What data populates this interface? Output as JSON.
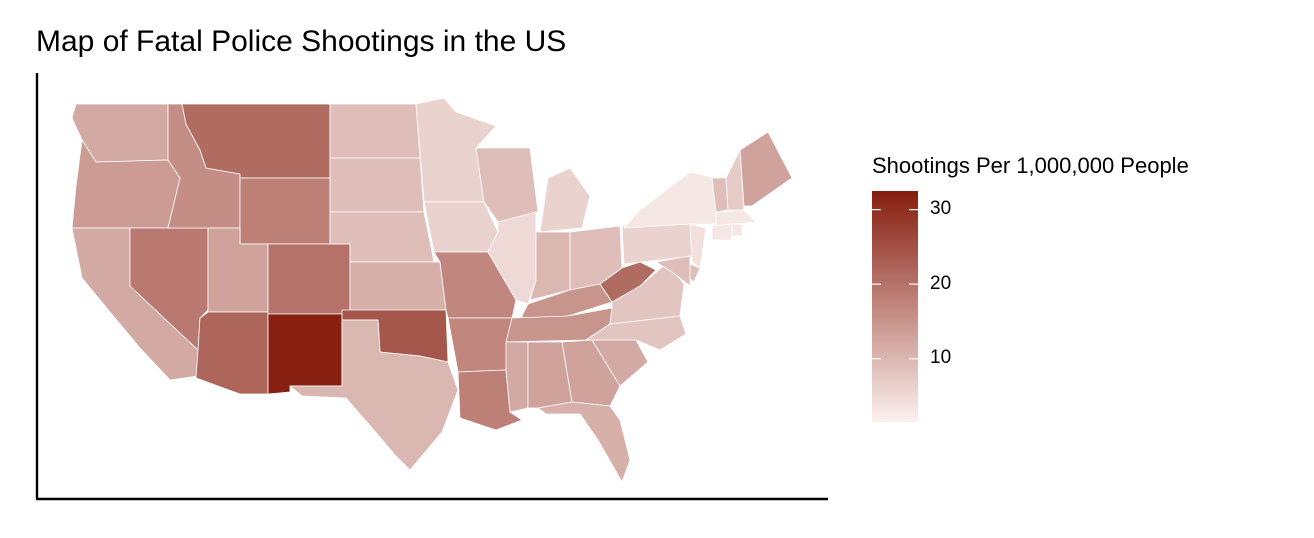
{
  "title": "Map of Fatal Police Shootings in the US",
  "legend": {
    "title": "Shootings Per 1,000,000 People",
    "ticks": [
      "30",
      "20",
      "10"
    ],
    "tick_values": [
      30,
      20,
      10
    ],
    "range": [
      1.5,
      32.5
    ],
    "color_low": "#fbf1ef",
    "color_high": "#861d0e"
  },
  "chart_data": {
    "type": "heatmap",
    "title": "Map of Fatal Police Shootings in the US",
    "legend_title": "Shootings Per 1,000,000 People",
    "legend_placement": "right",
    "scale_range": [
      1.5,
      32.5
    ],
    "scale_ticks": [
      10,
      20,
      30
    ],
    "regions": [
      {
        "name": "Washington",
        "value": 12
      },
      {
        "name": "Oregon",
        "value": 14
      },
      {
        "name": "California",
        "value": 12
      },
      {
        "name": "Nevada",
        "value": 19
      },
      {
        "name": "Idaho",
        "value": 16
      },
      {
        "name": "Montana",
        "value": 21
      },
      {
        "name": "Wyoming",
        "value": 18
      },
      {
        "name": "Utah",
        "value": 13
      },
      {
        "name": "Arizona",
        "value": 22
      },
      {
        "name": "Colorado",
        "value": 20
      },
      {
        "name": "New Mexico",
        "value": 32
      },
      {
        "name": "North Dakota",
        "value": 9
      },
      {
        "name": "South Dakota",
        "value": 9
      },
      {
        "name": "Nebraska",
        "value": 9
      },
      {
        "name": "Kansas",
        "value": 11
      },
      {
        "name": "Oklahoma",
        "value": 24
      },
      {
        "name": "Texas",
        "value": 10
      },
      {
        "name": "Minnesota",
        "value": 6
      },
      {
        "name": "Iowa",
        "value": 6
      },
      {
        "name": "Missouri",
        "value": 17
      },
      {
        "name": "Arkansas",
        "value": 17
      },
      {
        "name": "Louisiana",
        "value": 18
      },
      {
        "name": "Wisconsin",
        "value": 9
      },
      {
        "name": "Illinois",
        "value": 5
      },
      {
        "name": "Michigan",
        "value": 6
      },
      {
        "name": "Indiana",
        "value": 10
      },
      {
        "name": "Ohio",
        "value": 9
      },
      {
        "name": "Kentucky",
        "value": 15
      },
      {
        "name": "Tennessee",
        "value": 15
      },
      {
        "name": "Mississippi",
        "value": 12
      },
      {
        "name": "Alabama",
        "value": 13
      },
      {
        "name": "Georgia",
        "value": 13
      },
      {
        "name": "Florida",
        "value": 11
      },
      {
        "name": "South Carolina",
        "value": 12
      },
      {
        "name": "North Carolina",
        "value": 8
      },
      {
        "name": "Virginia",
        "value": 8
      },
      {
        "name": "West Virginia",
        "value": 21
      },
      {
        "name": "Pennsylvania",
        "value": 6
      },
      {
        "name": "New York",
        "value": 3
      },
      {
        "name": "New Jersey",
        "value": 4
      },
      {
        "name": "Delaware",
        "value": 9
      },
      {
        "name": "Maryland",
        "value": 9
      },
      {
        "name": "Vermont",
        "value": 9
      },
      {
        "name": "New Hampshire",
        "value": 7
      },
      {
        "name": "Maine",
        "value": 13
      },
      {
        "name": "Massachusetts",
        "value": 3
      },
      {
        "name": "Connecticut",
        "value": 3
      },
      {
        "name": "Rhode Island",
        "value": 3
      }
    ]
  }
}
